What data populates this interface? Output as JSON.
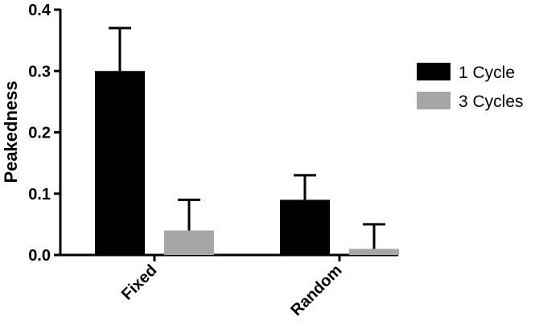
{
  "chart_data": {
    "type": "bar",
    "title": "",
    "xlabel": "",
    "ylabel": "Peakedness",
    "ylim": [
      0,
      0.4
    ],
    "yticks": [
      "0.0",
      "0.1",
      "0.2",
      "0.3",
      "0.4"
    ],
    "categories": [
      "Fixed",
      "Random"
    ],
    "series": [
      {
        "name": "1 Cycle",
        "color": "#000000",
        "values": [
          0.3,
          0.09
        ],
        "errors": [
          0.07,
          0.04
        ]
      },
      {
        "name": "3 Cycles",
        "color": "#a6a6a6",
        "values": [
          0.04,
          0.01
        ],
        "errors": [
          0.05,
          0.04
        ]
      }
    ],
    "legend_position": "right",
    "grid": false
  }
}
